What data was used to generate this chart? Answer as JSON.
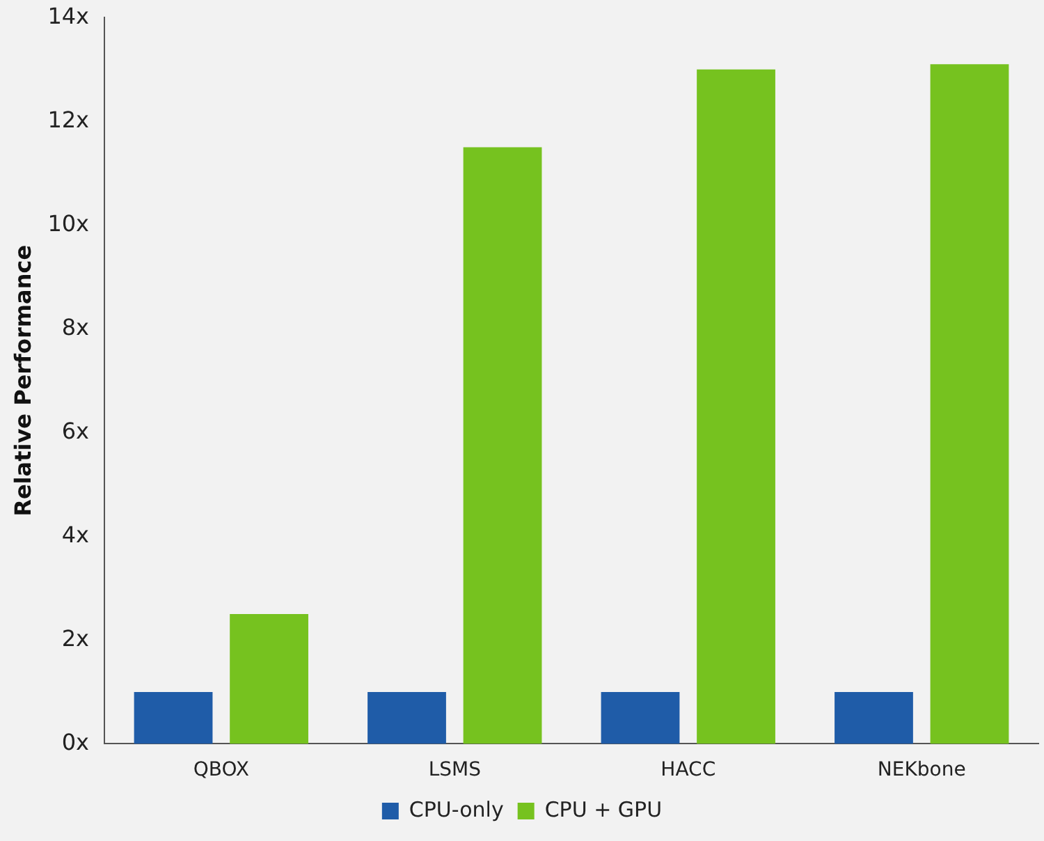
{
  "chart_data": {
    "type": "bar",
    "ylabel": "Relative Performance",
    "categories": [
      "QBOX",
      "LSMS",
      "HACC",
      "NEKbone"
    ],
    "series": [
      {
        "name": "CPU-only",
        "color": "#1f5ca8",
        "values": [
          1,
          1,
          1,
          1
        ]
      },
      {
        "name": "CPU + GPU",
        "color": "#76c21f",
        "values": [
          2.5,
          11.5,
          13,
          13.1
        ]
      }
    ],
    "ylim": [
      0,
      14
    ],
    "yticks": [
      {
        "value": 0,
        "label": "0x"
      },
      {
        "value": 2,
        "label": "2x"
      },
      {
        "value": 4,
        "label": "4x"
      },
      {
        "value": 6,
        "label": "6x"
      },
      {
        "value": 8,
        "label": "8x"
      },
      {
        "value": 10,
        "label": "10x"
      },
      {
        "value": 12,
        "label": "12x"
      },
      {
        "value": 14,
        "label": "14x"
      }
    ],
    "grid": false,
    "legend": "bottom"
  }
}
